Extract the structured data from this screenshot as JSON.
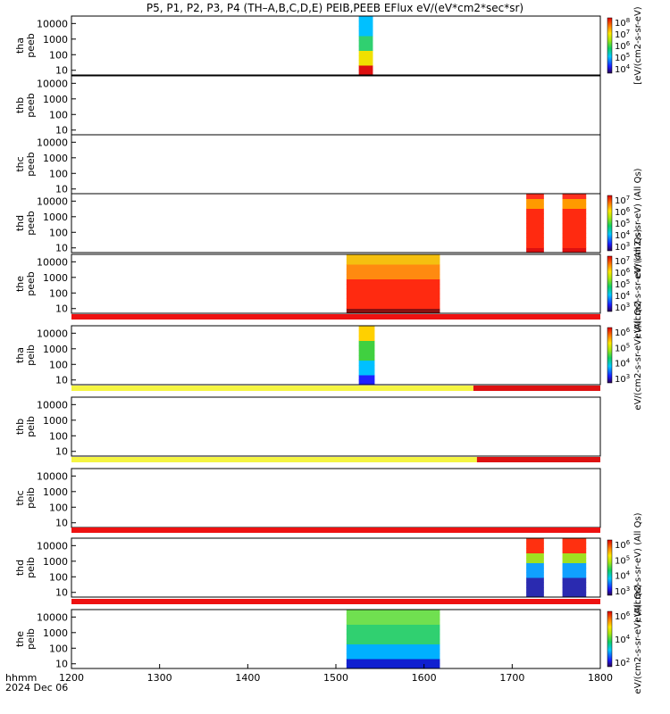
{
  "chart_data": {
    "type": "heatmap",
    "title": "P5, P1, P2, P3, P4 (TH–A,B,C,D,E) PEIB,PEEB EFlux eV/(eV*cm2*sec*sr)",
    "x_axis": {
      "range": [
        1200,
        1800
      ],
      "ticks": [
        "1200",
        "1300",
        "1400",
        "1500",
        "1600",
        "1700",
        "1800"
      ],
      "label_line1": "hhmm",
      "label_line2": "2024 Dec 06"
    },
    "y_ticks": [
      "10000",
      "1000",
      "100",
      "10"
    ],
    "y_tick_values": [
      10000,
      1000,
      100,
      10
    ],
    "y_range": [
      5,
      30000
    ],
    "y_scale": "log",
    "panels": [
      {
        "label1": "tha",
        "label2": "peeb",
        "colorbar": {
          "ticks": [
            "10^8",
            "10^7",
            "10^6",
            "10^5",
            "10^4"
          ],
          "label": "[eV/(cm2-s-sr-eV)"
        },
        "data": [
          {
            "start": 1526,
            "end": 1542,
            "scheme": "tha"
          }
        ]
      },
      {
        "label1": "thb",
        "label2": "peeb",
        "colorbar": null,
        "data": []
      },
      {
        "label1": "thc",
        "label2": "peeb",
        "colorbar": null,
        "data": []
      },
      {
        "label1": "thd",
        "label2": "peeb",
        "colorbar": {
          "ticks": [
            "10^7",
            "10^6",
            "10^5",
            "10^4",
            "10^3"
          ],
          "label": "eV/(cm2-s-sr-eV) (All Qs)"
        },
        "data": [
          {
            "start": 1716,
            "end": 1736,
            "scheme": "thd"
          },
          {
            "start": 1757,
            "end": 1784,
            "scheme": "thd"
          }
        ]
      },
      {
        "label1": "the",
        "label2": "peeb",
        "colorbar": {
          "ticks": [
            "10^7",
            "10^6",
            "10^5",
            "10^4",
            "10^3"
          ],
          "label": "eV/(cm2-s-sr-eV) (All Qs)"
        },
        "data": [
          {
            "start": 1512,
            "end": 1618,
            "scheme": "the_e"
          }
        ]
      },
      {
        "label1": "tha",
        "label2": "peib",
        "colorbar": {
          "ticks": [
            "10^6",
            "10^5",
            "10^4",
            "10^3"
          ],
          "label": "eV/(cm2-s-sr-eV) (All Qs)"
        },
        "data": [
          {
            "start": 1526,
            "end": 1544,
            "scheme": "tha_i"
          }
        ]
      },
      {
        "label1": "thb",
        "label2": "peib",
        "colorbar": null,
        "data": []
      },
      {
        "label1": "thc",
        "label2": "peib",
        "colorbar": null,
        "data": []
      },
      {
        "label1": "thd",
        "label2": "peib",
        "colorbar": {
          "ticks": [
            "10^6",
            "10^5",
            "10^4",
            "10^3"
          ],
          "label": "eV/(cm2-s-sr-eV) (All Qs)"
        },
        "data": [
          {
            "start": 1716,
            "end": 1736,
            "scheme": "thd_i"
          },
          {
            "start": 1757,
            "end": 1784,
            "scheme": "thd_i"
          }
        ]
      },
      {
        "label1": "the",
        "label2": "peib",
        "colorbar": {
          "ticks": [
            "10^6",
            "10^4",
            "10^2"
          ],
          "label": "eV/(cm2-s-sr-eV) (All Qs)"
        },
        "data": [
          {
            "start": 1512,
            "end": 1618,
            "scheme": "the_i"
          }
        ]
      }
    ],
    "mode_bars": [
      {
        "after_panel": 4,
        "segments": [
          {
            "start": 1200,
            "end": 1800,
            "color": "#ee1111"
          }
        ]
      },
      {
        "after_panel": 5,
        "segments": [
          {
            "start": 1200,
            "end": 1656,
            "color": "#f5f542"
          },
          {
            "start": 1656,
            "end": 1800,
            "color": "#dd1111"
          }
        ]
      },
      {
        "after_panel": 6,
        "segments": [
          {
            "start": 1200,
            "end": 1660,
            "color": "#f5f542"
          },
          {
            "start": 1660,
            "end": 1800,
            "color": "#dd1111"
          }
        ]
      },
      {
        "after_panel": 7,
        "segments": [
          {
            "start": 1200,
            "end": 1800,
            "color": "#ee1111"
          }
        ]
      },
      {
        "after_panel": 8,
        "segments": [
          {
            "start": 1200,
            "end": 1800,
            "color": "#ee1111"
          }
        ]
      }
    ],
    "colorbar_first_label": "[eV/(cm2-s-sr-eV) (All Qs)"
  }
}
